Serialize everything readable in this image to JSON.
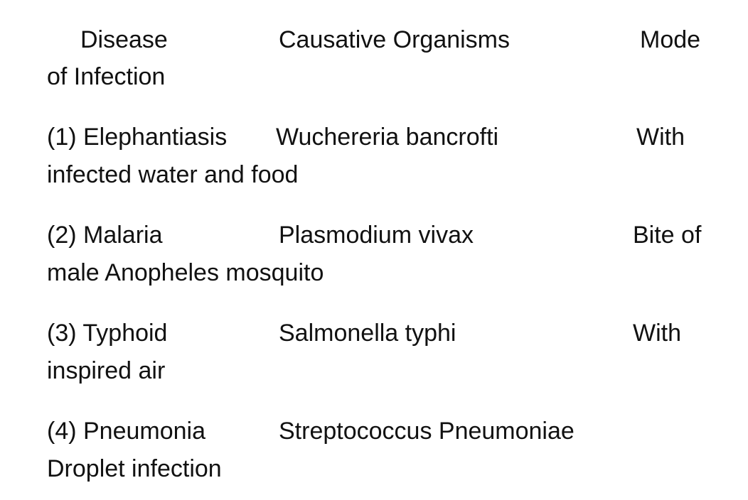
{
  "header": {
    "disease": "Disease",
    "organisms": "Causative Organisms",
    "mode_part1": "Mode",
    "mode_part2": "of Infection"
  },
  "rows": [
    {
      "disease": "(1) Elephantiasis",
      "organism": "Wuchereria bancrofti",
      "mode_part1": "With",
      "mode_part2": "infected water and food"
    },
    {
      "disease": "(2) Malaria",
      "organism": "Plasmodium vivax",
      "mode_part1": "Bite of",
      "mode_part2": "male Anopheles mosquito"
    },
    {
      "disease": "(3) Typhoid",
      "organism": "Salmonella typhi",
      "mode_part1": "With",
      "mode_part2": "inspired air"
    },
    {
      "disease": "(4) Pneumonia",
      "organism": "Streptococcus Pneumoniae",
      "mode_part1": "",
      "mode_part2": "Droplet infection"
    }
  ]
}
